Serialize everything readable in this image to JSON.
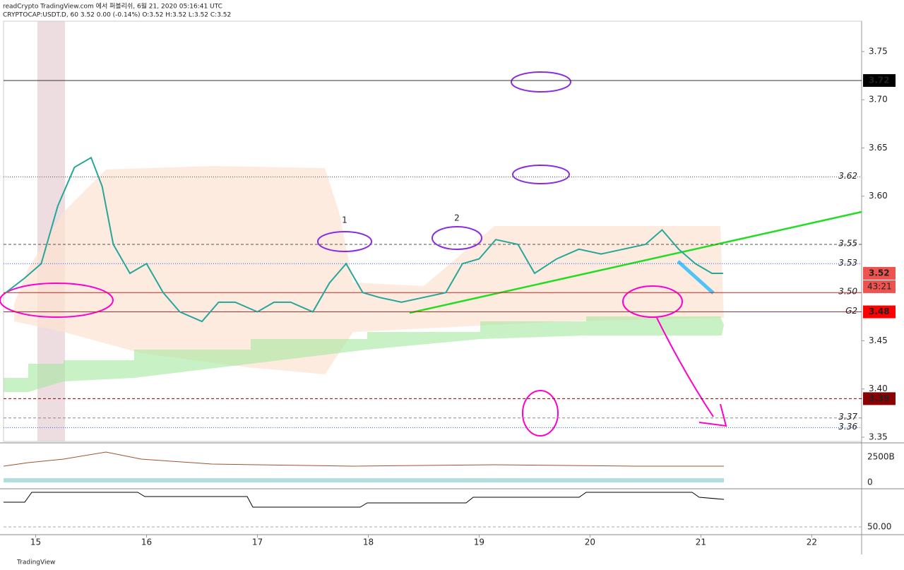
{
  "chart_data": {
    "type": "line",
    "title": "readCrypto TradingView.com 에서 퍼블리쉬, 6월 21, 2020 05:16:41 UTC",
    "subtitle": "CRYPTOCAP:USDT.D, 60 3.52 0.00 (-0.14%) O:3.52 H:3.52 L:3.52 C:3.52",
    "x": [
      14.73,
      14.9,
      15.05,
      15.2,
      15.35,
      15.5,
      15.6,
      15.7,
      15.85,
      16.0,
      16.15,
      16.3,
      16.5,
      16.65,
      16.8,
      17.0,
      17.15,
      17.3,
      17.5,
      17.65,
      17.8,
      17.95,
      18.1,
      18.3,
      18.5,
      18.7,
      18.85,
      19.0,
      19.15,
      19.35,
      19.5,
      19.7,
      19.9,
      20.1,
      20.3,
      20.5,
      20.65,
      20.8,
      20.95,
      21.1,
      21.2
    ],
    "series": [
      {
        "name": "USDT.D",
        "color": "#26a69a",
        "values": [
          3.5,
          3.515,
          3.53,
          3.59,
          3.63,
          3.64,
          3.61,
          3.55,
          3.52,
          3.53,
          3.5,
          3.48,
          3.47,
          3.49,
          3.49,
          3.48,
          3.49,
          3.49,
          3.48,
          3.51,
          3.53,
          3.5,
          3.495,
          3.49,
          3.495,
          3.5,
          3.53,
          3.535,
          3.555,
          3.55,
          3.52,
          3.535,
          3.545,
          3.54,
          3.545,
          3.55,
          3.565,
          3.545,
          3.53,
          3.52,
          3.52
        ]
      }
    ],
    "xlim": [
      14.71,
      22.45
    ],
    "xticks": [
      15,
      16,
      17,
      18,
      19,
      20,
      21,
      22
    ],
    "ylim": [
      3.3456,
      3.7815
    ],
    "yticks": [
      {
        "value": 3.35,
        "label": "3.35"
      },
      {
        "value": 3.4,
        "label": "3.40"
      },
      {
        "value": 3.45,
        "label": "3.45"
      },
      {
        "value": 3.6,
        "label": "3.60"
      },
      {
        "value": 3.65,
        "label": "3.65"
      },
      {
        "value": 3.7,
        "label": "3.70"
      },
      {
        "value": 3.75,
        "label": "3.75"
      }
    ],
    "levels": [
      {
        "value": 3.72,
        "color": "#333333",
        "dash": "none"
      },
      {
        "value": 3.62,
        "color": "#555555",
        "dash": "1 2",
        "label": "3.62"
      },
      {
        "value": 3.55,
        "color": "#555555",
        "dash": "4 3",
        "label": "3.55"
      },
      {
        "value": 3.53,
        "color": "#2962ff",
        "dash": "1 2",
        "label": "3.53"
      },
      {
        "value": 3.5,
        "color": "#c62828",
        "dash": "none",
        "label": "3.50"
      },
      {
        "value": 3.48,
        "color": "#c62828",
        "dash": "none",
        "label": "G2"
      },
      {
        "value": 3.39,
        "color": "#8b0000",
        "dash": "4 3"
      },
      {
        "value": 3.37,
        "color": "#888888",
        "dash": "4 3",
        "label": "3.37"
      },
      {
        "value": 3.36,
        "color": "#2962ff",
        "dash": "1 2",
        "label": "3.36"
      }
    ],
    "badges": [
      {
        "value": 3.72,
        "color": "#000000"
      },
      {
        "value": 3.52,
        "color": "#ef5350"
      },
      {
        "value": 3.48,
        "color": "#ff0000"
      },
      {
        "value": 3.39,
        "color": "#8b0000"
      }
    ],
    "countdown": "43:21",
    "annotations": [
      "1",
      "2"
    ],
    "volume_ticks": [
      "2500B",
      "0"
    ],
    "indicator_tick": "50.00",
    "brand": "TradingView"
  }
}
